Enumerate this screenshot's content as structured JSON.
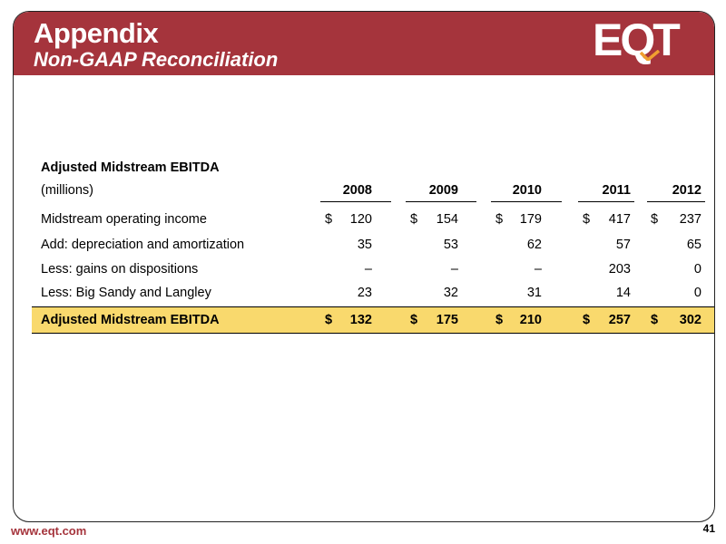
{
  "header": {
    "title": "Appendix",
    "subtitle": "Non-GAAP Reconciliation",
    "logo_text": "EQT",
    "brand_color": "#a5343c",
    "highlight_color": "#f9d96d"
  },
  "table": {
    "title": "Adjusted Midstream EBITDA",
    "unit_label": "(millions)",
    "years": [
      "2008",
      "2009",
      "2010",
      "2011",
      "2012"
    ],
    "currency_symbol": "$",
    "rows": [
      {
        "label": "Midstream operating income",
        "values": [
          "120",
          "154",
          "179",
          "417",
          "237"
        ],
        "has_dollar": true
      },
      {
        "label": "Add: depreciation and amortization",
        "values": [
          "35",
          "53",
          "62",
          "57",
          "65"
        ],
        "has_dollar": false
      },
      {
        "label": "Less: gains on dispositions",
        "values": [
          "–",
          "–",
          "–",
          "203",
          "0"
        ],
        "has_dollar": false
      },
      {
        "label": "Less: Big Sandy and Langley",
        "values": [
          "23",
          "32",
          "31",
          "14",
          "0"
        ],
        "has_dollar": false
      }
    ],
    "total": {
      "label": "Adjusted Midstream EBITDA",
      "values": [
        "132",
        "175",
        "210",
        "257",
        "302"
      ],
      "has_dollar": true
    }
  },
  "footer": {
    "url": "www.eqt.com",
    "page_number": "41"
  }
}
